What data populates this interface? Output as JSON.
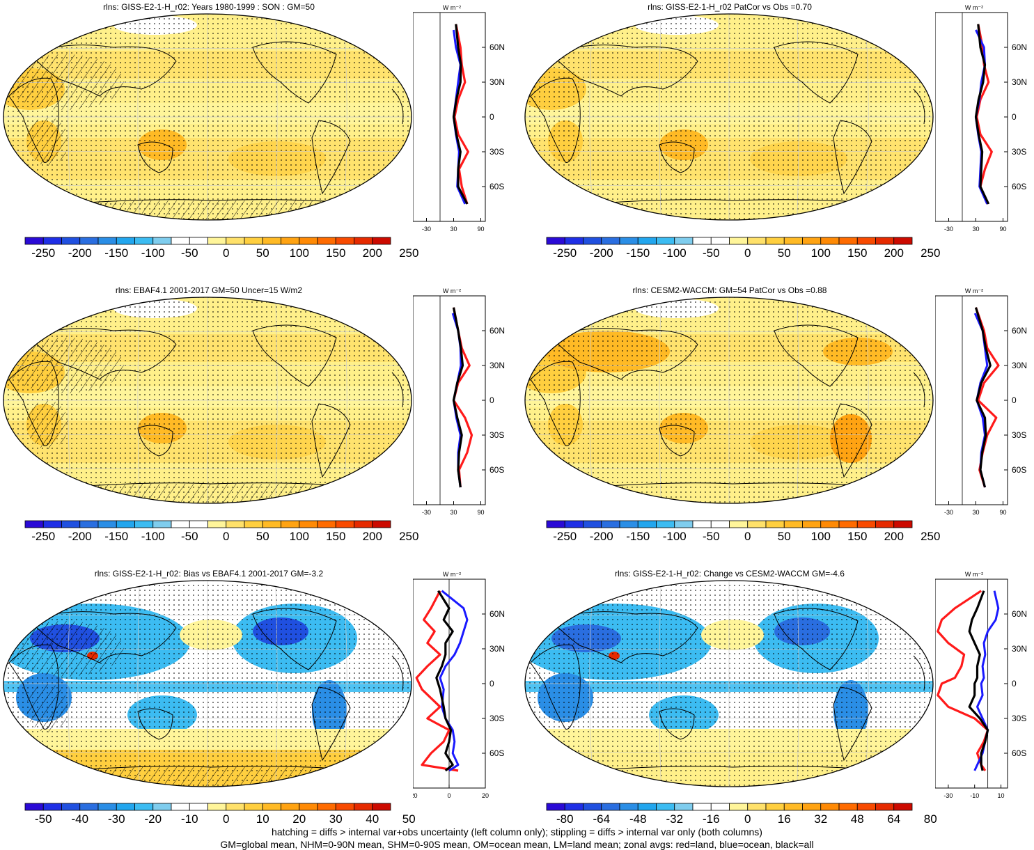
{
  "footer": {
    "line1": "hatching = diffs > internal var+obs uncertainty (left column only); stippling = diffs > internal var only (both columns)",
    "line2": "GM=global mean, NHM=0-90N mean, SHM=0-90S mean, OM=ocean mean, LM=land mean; zonal avgs: red=land, blue=ocean, black=all"
  },
  "zonal_units": "W m⁻²",
  "lat_labels": [
    "60N",
    "30N",
    "0",
    "30S",
    "60S"
  ],
  "colors": {
    "land": "#ff1a1a",
    "ocean": "#1a1aff",
    "all": "#000000",
    "scale": [
      "#2a0ad6",
      "#1f2fe6",
      "#2050e0",
      "#2a6ee0",
      "#2a8ee6",
      "#22a6ee",
      "#3cbcf2",
      "#7fcdee",
      "#ffffff",
      "#ffffff",
      "#fff59a",
      "#ffe16a",
      "#ffcf3f",
      "#ffba25",
      "#ffa312",
      "#ff8a05",
      "#ff6b00",
      "#f84a00",
      "#e62a00",
      "#cc0a00"
    ]
  },
  "chart_data": [
    {
      "type": "heatmap",
      "title": "rlns: GISS-E2-1-H_r02: Years 1980-1999 : SON : GM=50",
      "colorbar_ticks": [
        "-250",
        "-200",
        "-150",
        "-100",
        "-50",
        "0",
        "50",
        "100",
        "150",
        "200",
        "250"
      ],
      "zonal": {
        "xticks": [
          "-30",
          "30",
          "90"
        ],
        "xlim": [
          -60,
          100
        ],
        "zero_line": 0,
        "land": [
          [
            80,
            35
          ],
          [
            60,
            45
          ],
          [
            45,
            48
          ],
          [
            30,
            55
          ],
          [
            15,
            40
          ],
          [
            0,
            32
          ],
          [
            -15,
            40
          ],
          [
            -30,
            62
          ],
          [
            -45,
            42
          ],
          [
            -60,
            48
          ],
          [
            -75,
            60
          ]
        ],
        "ocean": [
          [
            75,
            30
          ],
          [
            60,
            35
          ],
          [
            45,
            45
          ],
          [
            30,
            40
          ],
          [
            15,
            35
          ],
          [
            0,
            30
          ],
          [
            -15,
            35
          ],
          [
            -30,
            42
          ],
          [
            -45,
            40
          ],
          [
            -60,
            38
          ],
          [
            -75,
            55
          ]
        ],
        "all": [
          [
            80,
            35
          ],
          [
            60,
            40
          ],
          [
            45,
            46
          ],
          [
            30,
            45
          ],
          [
            15,
            36
          ],
          [
            0,
            30
          ],
          [
            -15,
            36
          ],
          [
            -30,
            45
          ],
          [
            -45,
            40
          ],
          [
            -60,
            40
          ],
          [
            -75,
            60
          ]
        ]
      }
    },
    {
      "type": "heatmap",
      "title": "rlns: GISS-E2-1-H_r02 PatCor vs Obs =0.70",
      "colorbar_ticks": [
        "-250",
        "-200",
        "-150",
        "-100",
        "-50",
        "0",
        "50",
        "100",
        "150",
        "200",
        "250"
      ],
      "zonal": {
        "xticks": [
          "-30",
          "30",
          "90"
        ],
        "xlim": [
          -60,
          100
        ],
        "zero_line": 0,
        "land": [
          [
            80,
            35
          ],
          [
            60,
            45
          ],
          [
            45,
            48
          ],
          [
            30,
            58
          ],
          [
            15,
            40
          ],
          [
            0,
            32
          ],
          [
            -15,
            40
          ],
          [
            -30,
            65
          ],
          [
            -45,
            50
          ],
          [
            -60,
            40
          ],
          [
            -75,
            55
          ]
        ],
        "ocean": [
          [
            75,
            30
          ],
          [
            60,
            48
          ],
          [
            45,
            50
          ],
          [
            30,
            42
          ],
          [
            15,
            38
          ],
          [
            0,
            30
          ],
          [
            -15,
            35
          ],
          [
            -30,
            42
          ],
          [
            -45,
            40
          ],
          [
            -60,
            38
          ],
          [
            -75,
            55
          ]
        ],
        "all": [
          [
            80,
            35
          ],
          [
            60,
            40
          ],
          [
            45,
            50
          ],
          [
            30,
            46
          ],
          [
            15,
            36
          ],
          [
            0,
            30
          ],
          [
            -15,
            36
          ],
          [
            -30,
            44
          ],
          [
            -45,
            42
          ],
          [
            -60,
            40
          ],
          [
            -75,
            58
          ]
        ]
      }
    },
    {
      "type": "heatmap",
      "title": "rlns: EBAF4.1 2001-2017 GM=50 Uncer=15 W/m2",
      "colorbar_ticks": [
        "-250",
        "-200",
        "-150",
        "-100",
        "-50",
        "0",
        "50",
        "100",
        "150",
        "200",
        "250"
      ],
      "zonal": {
        "xticks": [
          "-30",
          "30",
          "90"
        ],
        "xlim": [
          -60,
          100
        ],
        "zero_line": 0,
        "land": [
          [
            80,
            30
          ],
          [
            60,
            40
          ],
          [
            45,
            48
          ],
          [
            30,
            65
          ],
          [
            15,
            40
          ],
          [
            0,
            30
          ],
          [
            -15,
            55
          ],
          [
            -30,
            70
          ],
          [
            -45,
            60
          ],
          [
            -60,
            42
          ],
          [
            -75,
            45
          ]
        ],
        "ocean": [
          [
            75,
            28
          ],
          [
            60,
            40
          ],
          [
            45,
            45
          ],
          [
            30,
            46
          ],
          [
            15,
            38
          ],
          [
            0,
            30
          ],
          [
            -15,
            36
          ],
          [
            -30,
            45
          ],
          [
            -45,
            40
          ],
          [
            -60,
            40
          ],
          [
            -75,
            45
          ]
        ],
        "all": [
          [
            80,
            30
          ],
          [
            60,
            40
          ],
          [
            45,
            46
          ],
          [
            30,
            50
          ],
          [
            15,
            38
          ],
          [
            0,
            30
          ],
          [
            -15,
            38
          ],
          [
            -30,
            48
          ],
          [
            -45,
            42
          ],
          [
            -60,
            40
          ],
          [
            -75,
            45
          ]
        ]
      }
    },
    {
      "type": "heatmap",
      "title": "rlns: CESM2-WACCM: GM=54 PatCor vs Obs =0.88",
      "colorbar_ticks": [
        "-250",
        "-200",
        "-150",
        "-100",
        "-50",
        "0",
        "50",
        "100",
        "150",
        "200",
        "250"
      ],
      "zonal": {
        "xticks": [
          "-30",
          "30",
          "90"
        ],
        "xlim": [
          -60,
          100
        ],
        "zero_line": 0,
        "land": [
          [
            80,
            30
          ],
          [
            60,
            48
          ],
          [
            45,
            55
          ],
          [
            30,
            80
          ],
          [
            15,
            48
          ],
          [
            0,
            35
          ],
          [
            -15,
            75
          ],
          [
            -30,
            55
          ],
          [
            -45,
            45
          ],
          [
            -60,
            38
          ],
          [
            -75,
            50
          ]
        ],
        "ocean": [
          [
            75,
            28
          ],
          [
            60,
            45
          ],
          [
            45,
            50
          ],
          [
            30,
            55
          ],
          [
            15,
            40
          ],
          [
            0,
            32
          ],
          [
            -15,
            45
          ],
          [
            -30,
            50
          ],
          [
            -45,
            42
          ],
          [
            -60,
            40
          ],
          [
            -75,
            50
          ]
        ],
        "all": [
          [
            80,
            30
          ],
          [
            60,
            45
          ],
          [
            45,
            52
          ],
          [
            30,
            62
          ],
          [
            15,
            42
          ],
          [
            0,
            32
          ],
          [
            -15,
            50
          ],
          [
            -30,
            52
          ],
          [
            -45,
            44
          ],
          [
            -60,
            40
          ],
          [
            -75,
            50
          ]
        ]
      }
    },
    {
      "type": "heatmap",
      "title": "rlns: GISS-E2-1-H_r02: Bias vs EBAF4.1 2001-2017  GM=-3.2",
      "colorbar_ticks": [
        "-50",
        "-40",
        "-30",
        "-20",
        "-10",
        "0",
        "10",
        "20",
        "30",
        "40",
        "50"
      ],
      "zonal": {
        "xticks": [
          "-20",
          "0",
          "20"
        ],
        "xlim": [
          -20,
          20
        ],
        "zero_line": 0,
        "land": [
          [
            80,
            -5
          ],
          [
            65,
            -10
          ],
          [
            55,
            -14
          ],
          [
            45,
            -8
          ],
          [
            35,
            -12
          ],
          [
            25,
            -5
          ],
          [
            15,
            -12
          ],
          [
            5,
            -18
          ],
          [
            -5,
            -15
          ],
          [
            -20,
            -5
          ],
          [
            -30,
            -12
          ],
          [
            -40,
            0
          ],
          [
            -50,
            -3
          ],
          [
            -60,
            -10
          ],
          [
            -70,
            -15
          ],
          [
            -75,
            5
          ]
        ],
        "ocean": [
          [
            80,
            -4
          ],
          [
            65,
            8
          ],
          [
            55,
            10
          ],
          [
            45,
            8
          ],
          [
            35,
            6
          ],
          [
            25,
            3
          ],
          [
            15,
            -2
          ],
          [
            5,
            -5
          ],
          [
            -5,
            -3
          ],
          [
            -20,
            -4
          ],
          [
            -30,
            -2
          ],
          [
            -40,
            2
          ],
          [
            -50,
            3
          ],
          [
            -60,
            2
          ],
          [
            -70,
            5
          ],
          [
            -75,
            0
          ]
        ],
        "all": [
          [
            80,
            -6
          ],
          [
            65,
            0
          ],
          [
            55,
            -3
          ],
          [
            45,
            2
          ],
          [
            35,
            -2
          ],
          [
            25,
            -2
          ],
          [
            15,
            -4
          ],
          [
            5,
            -7
          ],
          [
            -5,
            -5
          ],
          [
            -20,
            -3
          ],
          [
            -30,
            -2
          ],
          [
            -40,
            1
          ],
          [
            -50,
            0
          ],
          [
            -60,
            -2
          ],
          [
            -70,
            2
          ],
          [
            -75,
            -2
          ]
        ]
      }
    },
    {
      "type": "heatmap",
      "title": "rlns: GISS-E2-1-H_r02: Change vs CESM2-WACCM GM=-4.6",
      "colorbar_ticks": [
        "-80",
        "-64",
        "-48",
        "-32",
        "-16",
        "0",
        "16",
        "32",
        "48",
        "64",
        "80"
      ],
      "zonal": {
        "xticks": [
          "-30",
          "-10",
          "10"
        ],
        "xlim": [
          -40,
          15
        ],
        "zero_line": 0,
        "land": [
          [
            80,
            -5
          ],
          [
            65,
            -25
          ],
          [
            55,
            -35
          ],
          [
            45,
            -38
          ],
          [
            35,
            -30
          ],
          [
            25,
            -18
          ],
          [
            15,
            -20
          ],
          [
            5,
            -25
          ],
          [
            0,
            -35
          ],
          [
            -10,
            -38
          ],
          [
            -20,
            -30
          ],
          [
            -30,
            -10
          ],
          [
            -40,
            0
          ],
          [
            -50,
            -3
          ],
          [
            -60,
            -8
          ],
          [
            -70,
            -5
          ],
          [
            -75,
            -2
          ]
        ],
        "ocean": [
          [
            80,
            5
          ],
          [
            65,
            8
          ],
          [
            55,
            6
          ],
          [
            45,
            0
          ],
          [
            35,
            -3
          ],
          [
            25,
            -2
          ],
          [
            15,
            -4
          ],
          [
            5,
            -3
          ],
          [
            0,
            -5
          ],
          [
            -10,
            -4
          ],
          [
            -20,
            -8
          ],
          [
            -30,
            -4
          ],
          [
            -40,
            0
          ],
          [
            -50,
            -2
          ],
          [
            -60,
            -4
          ],
          [
            -70,
            -8
          ],
          [
            -75,
            -10
          ]
        ],
        "all": [
          [
            80,
            -3
          ],
          [
            65,
            -8
          ],
          [
            55,
            -12
          ],
          [
            45,
            -14
          ],
          [
            35,
            -10
          ],
          [
            25,
            -6
          ],
          [
            15,
            -8
          ],
          [
            5,
            -8
          ],
          [
            0,
            -10
          ],
          [
            -10,
            -10
          ],
          [
            -20,
            -14
          ],
          [
            -30,
            -6
          ],
          [
            -40,
            0
          ],
          [
            -50,
            -2
          ],
          [
            -60,
            -5
          ],
          [
            -70,
            -5
          ],
          [
            -75,
            -4
          ]
        ]
      }
    }
  ]
}
